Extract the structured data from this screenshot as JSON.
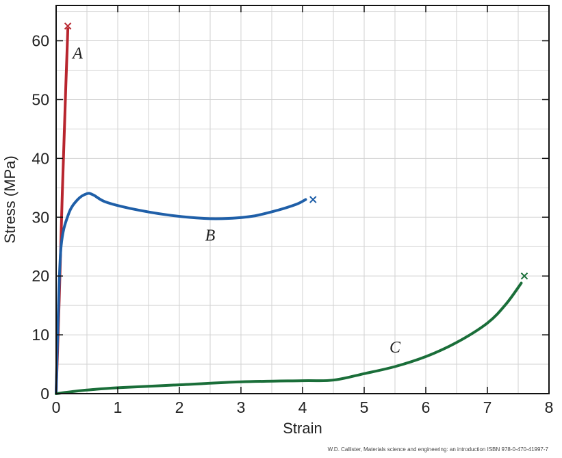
{
  "chart_data": {
    "type": "line",
    "title": "",
    "xlabel": "Strain",
    "ylabel": "Stress (MPa)",
    "xlim": [
      0,
      8
    ],
    "ylim": [
      0,
      66
    ],
    "xticks": [
      0,
      1,
      2,
      3,
      4,
      5,
      6,
      7,
      8
    ],
    "yticks": [
      0,
      10,
      20,
      30,
      40,
      50,
      60
    ],
    "grid": true,
    "legend": "none",
    "series": [
      {
        "name": "A",
        "color": "#b8252e",
        "points": [
          [
            0,
            0
          ],
          [
            0.05,
            16
          ],
          [
            0.1,
            34
          ],
          [
            0.15,
            50
          ],
          [
            0.19,
            62
          ]
        ],
        "fracture": [
          0.19,
          62.5
        ]
      },
      {
        "name": "B",
        "color": "#1f5fa8",
        "points": [
          [
            0,
            0
          ],
          [
            0.03,
            12
          ],
          [
            0.08,
            25
          ],
          [
            0.2,
            30.5
          ],
          [
            0.35,
            33
          ],
          [
            0.5,
            34
          ],
          [
            0.6,
            33.8
          ],
          [
            0.8,
            32.6
          ],
          [
            1.2,
            31.5
          ],
          [
            1.8,
            30.4
          ],
          [
            2.4,
            29.8
          ],
          [
            2.8,
            29.8
          ],
          [
            3.2,
            30.2
          ],
          [
            3.6,
            31.2
          ],
          [
            3.9,
            32.2
          ],
          [
            4.05,
            33
          ]
        ],
        "fracture": [
          4.17,
          33
        ]
      },
      {
        "name": "C",
        "color": "#1a6e39",
        "points": [
          [
            0,
            0
          ],
          [
            0.3,
            0.4
          ],
          [
            0.6,
            0.7
          ],
          [
            1,
            1.0
          ],
          [
            2,
            1.5
          ],
          [
            3,
            2.0
          ],
          [
            4,
            2.2
          ],
          [
            4.5,
            2.3
          ],
          [
            5,
            3.4
          ],
          [
            5.5,
            4.6
          ],
          [
            6,
            6.3
          ],
          [
            6.5,
            8.7
          ],
          [
            7,
            12.0
          ],
          [
            7.3,
            15.2
          ],
          [
            7.55,
            18.8
          ]
        ],
        "fracture": [
          7.6,
          20
        ]
      }
    ],
    "annotations": [
      {
        "text": "A",
        "x": 0.35,
        "y": 57
      },
      {
        "text": "B",
        "x": 2.5,
        "y": 26
      },
      {
        "text": "C",
        "x": 5.5,
        "y": 7
      }
    ]
  },
  "credit": "W.D. Callister, Materials science and engineering: an introduction ISBN 978-0-470-41997-7"
}
